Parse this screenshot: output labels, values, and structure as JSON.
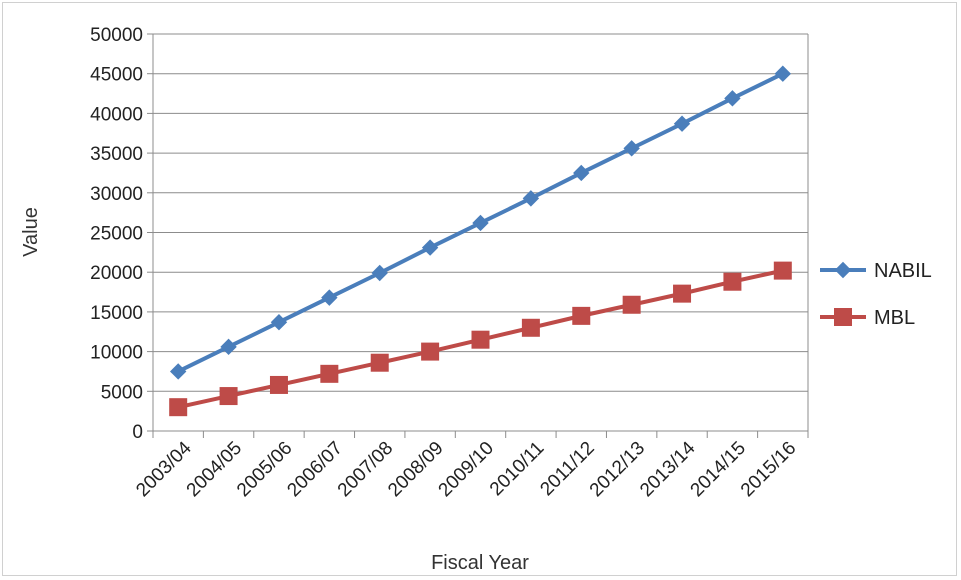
{
  "chart_data": {
    "type": "line",
    "categories": [
      "2003/04",
      "2004/05",
      "2005/06",
      "2006/07",
      "2007/08",
      "2008/09",
      "2009/10",
      "2010/11",
      "2011/12",
      "2012/13",
      "2013/14",
      "2014/15",
      "2015/16"
    ],
    "series": [
      {
        "name": "NABIL",
        "color": "#4a7ebb",
        "marker": "diamond",
        "values": [
          7500,
          10600,
          13700,
          16800,
          19900,
          23100,
          26200,
          29300,
          32500,
          35600,
          38700,
          41900,
          45000
        ]
      },
      {
        "name": "MBL",
        "color": "#be4b48",
        "marker": "square",
        "values": [
          3000,
          4400,
          5800,
          7200,
          8600,
          10000,
          11500,
          13000,
          14500,
          15900,
          17300,
          18800,
          20200
        ]
      }
    ],
    "xlabel": "Fiscal Year",
    "ylabel": "Value",
    "ylim": [
      0,
      50000
    ],
    "yticks": [
      "0",
      "5000",
      "10000",
      "15000",
      "20000",
      "25000",
      "30000",
      "35000",
      "40000",
      "45000",
      "50000"
    ],
    "grid": true,
    "legend_position": "right"
  }
}
